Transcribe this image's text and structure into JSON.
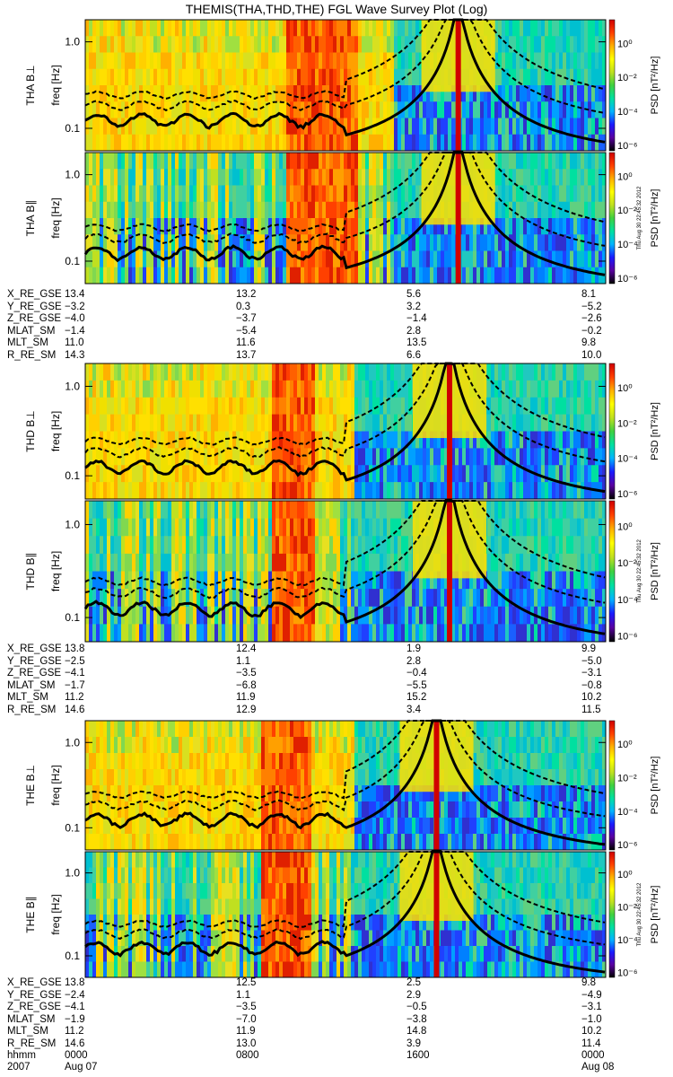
{
  "title": "THEMIS(THA,THD,THE) FGL Wave Survey Plot (Log)",
  "timestamp": "Thu Aug 30 22:45:32 2012",
  "colorbar": {
    "label": "PSD [nT²/Hz]",
    "ticks": [
      "10⁰",
      "10⁻²",
      "10⁻⁴",
      "10⁻⁶"
    ],
    "colors": [
      "#000000",
      "#5a00a0",
      "#1a1aff",
      "#00b4ff",
      "#00e0a0",
      "#40d040",
      "#c0e020",
      "#ffff00",
      "#ffb000",
      "#ff4000",
      "#d00000"
    ]
  },
  "chart_data": [
    {
      "type": "heatmap",
      "panel": "THA B⊥",
      "ylabel": "freq [Hz]",
      "yscale": "log",
      "ylim": [
        0.055,
        1.8
      ],
      "yticks": [
        "1.0",
        "0.1"
      ],
      "xlim": [
        "2007 Aug 07 0000",
        "Aug 08 0000"
      ]
    },
    {
      "type": "heatmap",
      "panel": "THA B∥",
      "ylabel": "freq [Hz]",
      "yscale": "log",
      "ylim": [
        0.055,
        1.8
      ],
      "yticks": [
        "1.0",
        "0.1"
      ],
      "xlim": [
        "2007 Aug 07 0000",
        "Aug 08 0000"
      ]
    },
    {
      "type": "heatmap",
      "panel": "THD B⊥",
      "ylabel": "freq [Hz]",
      "yscale": "log",
      "ylim": [
        0.055,
        1.8
      ],
      "yticks": [
        "1.0",
        "0.1"
      ],
      "xlim": [
        "2007 Aug 07 0000",
        "Aug 08 0000"
      ]
    },
    {
      "type": "heatmap",
      "panel": "THD B∥",
      "ylabel": "freq [Hz]",
      "yscale": "log",
      "ylim": [
        0.055,
        1.8
      ],
      "yticks": [
        "1.0",
        "0.1"
      ],
      "xlim": [
        "2007 Aug 07 0000",
        "Aug 08 0000"
      ]
    },
    {
      "type": "heatmap",
      "panel": "THE B⊥",
      "ylabel": "freq [Hz]",
      "yscale": "log",
      "ylim": [
        0.055,
        1.8
      ],
      "yticks": [
        "1.0",
        "0.1"
      ],
      "xlim": [
        "2007 Aug 07 0000",
        "Aug 08 0000"
      ]
    },
    {
      "type": "heatmap",
      "panel": "THE B∥",
      "ylabel": "freq [Hz]",
      "yscale": "log",
      "ylim": [
        0.055,
        1.8
      ],
      "yticks": [
        "1.0",
        "0.1"
      ],
      "xlim": [
        "2007 Aug 07 0000",
        "Aug 08 0000"
      ]
    }
  ],
  "ephemeris": [
    {
      "probe": "THA",
      "rows": [
        {
          "name": "X_RE_GSE",
          "values": [
            "13.4",
            "13.2",
            "5.6",
            "8.1"
          ]
        },
        {
          "name": "Y_RE_GSE",
          "values": [
            "−3.2",
            "0.3",
            "3.2",
            "−5.2"
          ]
        },
        {
          "name": "Z_RE_GSE",
          "values": [
            "−4.0",
            "−3.7",
            "−1.4",
            "−2.6"
          ]
        },
        {
          "name": "MLAT_SM",
          "values": [
            "−1.4",
            "−5.4",
            "2.8",
            "−0.2"
          ]
        },
        {
          "name": "MLT_SM",
          "values": [
            "11.0",
            "11.6",
            "13.5",
            "9.8"
          ]
        },
        {
          "name": "R_RE_SM",
          "values": [
            "14.3",
            "13.7",
            "6.6",
            "10.0"
          ]
        }
      ]
    },
    {
      "probe": "THD",
      "rows": [
        {
          "name": "X_RE_GSE",
          "values": [
            "13.8",
            "12.4",
            "1.9",
            "9.9"
          ]
        },
        {
          "name": "Y_RE_GSE",
          "values": [
            "−2.5",
            "1.1",
            "2.8",
            "−5.0"
          ]
        },
        {
          "name": "Z_RE_GSE",
          "values": [
            "−4.1",
            "−3.5",
            "−0.4",
            "−3.1"
          ]
        },
        {
          "name": "MLAT_SM",
          "values": [
            "−1.7",
            "−6.8",
            "−5.5",
            "−0.8"
          ]
        },
        {
          "name": "MLT_SM",
          "values": [
            "11.2",
            "11.9",
            "15.2",
            "10.2"
          ]
        },
        {
          "name": "R_RE_SM",
          "values": [
            "14.6",
            "12.9",
            "3.4",
            "11.5"
          ]
        }
      ]
    },
    {
      "probe": "THE",
      "rows": [
        {
          "name": "X_RE_GSE",
          "values": [
            "13.8",
            "12.5",
            "2.5",
            "9.8"
          ]
        },
        {
          "name": "Y_RE_GSE",
          "values": [
            "−2.4",
            "1.1",
            "2.9",
            "−4.9"
          ]
        },
        {
          "name": "Z_RE_GSE",
          "values": [
            "−4.1",
            "−3.5",
            "−0.5",
            "−3.1"
          ]
        },
        {
          "name": "MLAT_SM",
          "values": [
            "−1.9",
            "−7.0",
            "−3.8",
            "−1.0"
          ]
        },
        {
          "name": "MLT_SM",
          "values": [
            "11.2",
            "11.9",
            "14.8",
            "10.2"
          ]
        },
        {
          "name": "R_RE_SM",
          "values": [
            "14.6",
            "13.0",
            "3.9",
            "11.4"
          ]
        }
      ]
    }
  ],
  "footer": {
    "hhmm_label": "hhmm",
    "year": "2007",
    "times": [
      "0000",
      "0800",
      "1600",
      "0000"
    ],
    "dates": [
      "Aug 07",
      "",
      "",
      "Aug 08"
    ]
  }
}
